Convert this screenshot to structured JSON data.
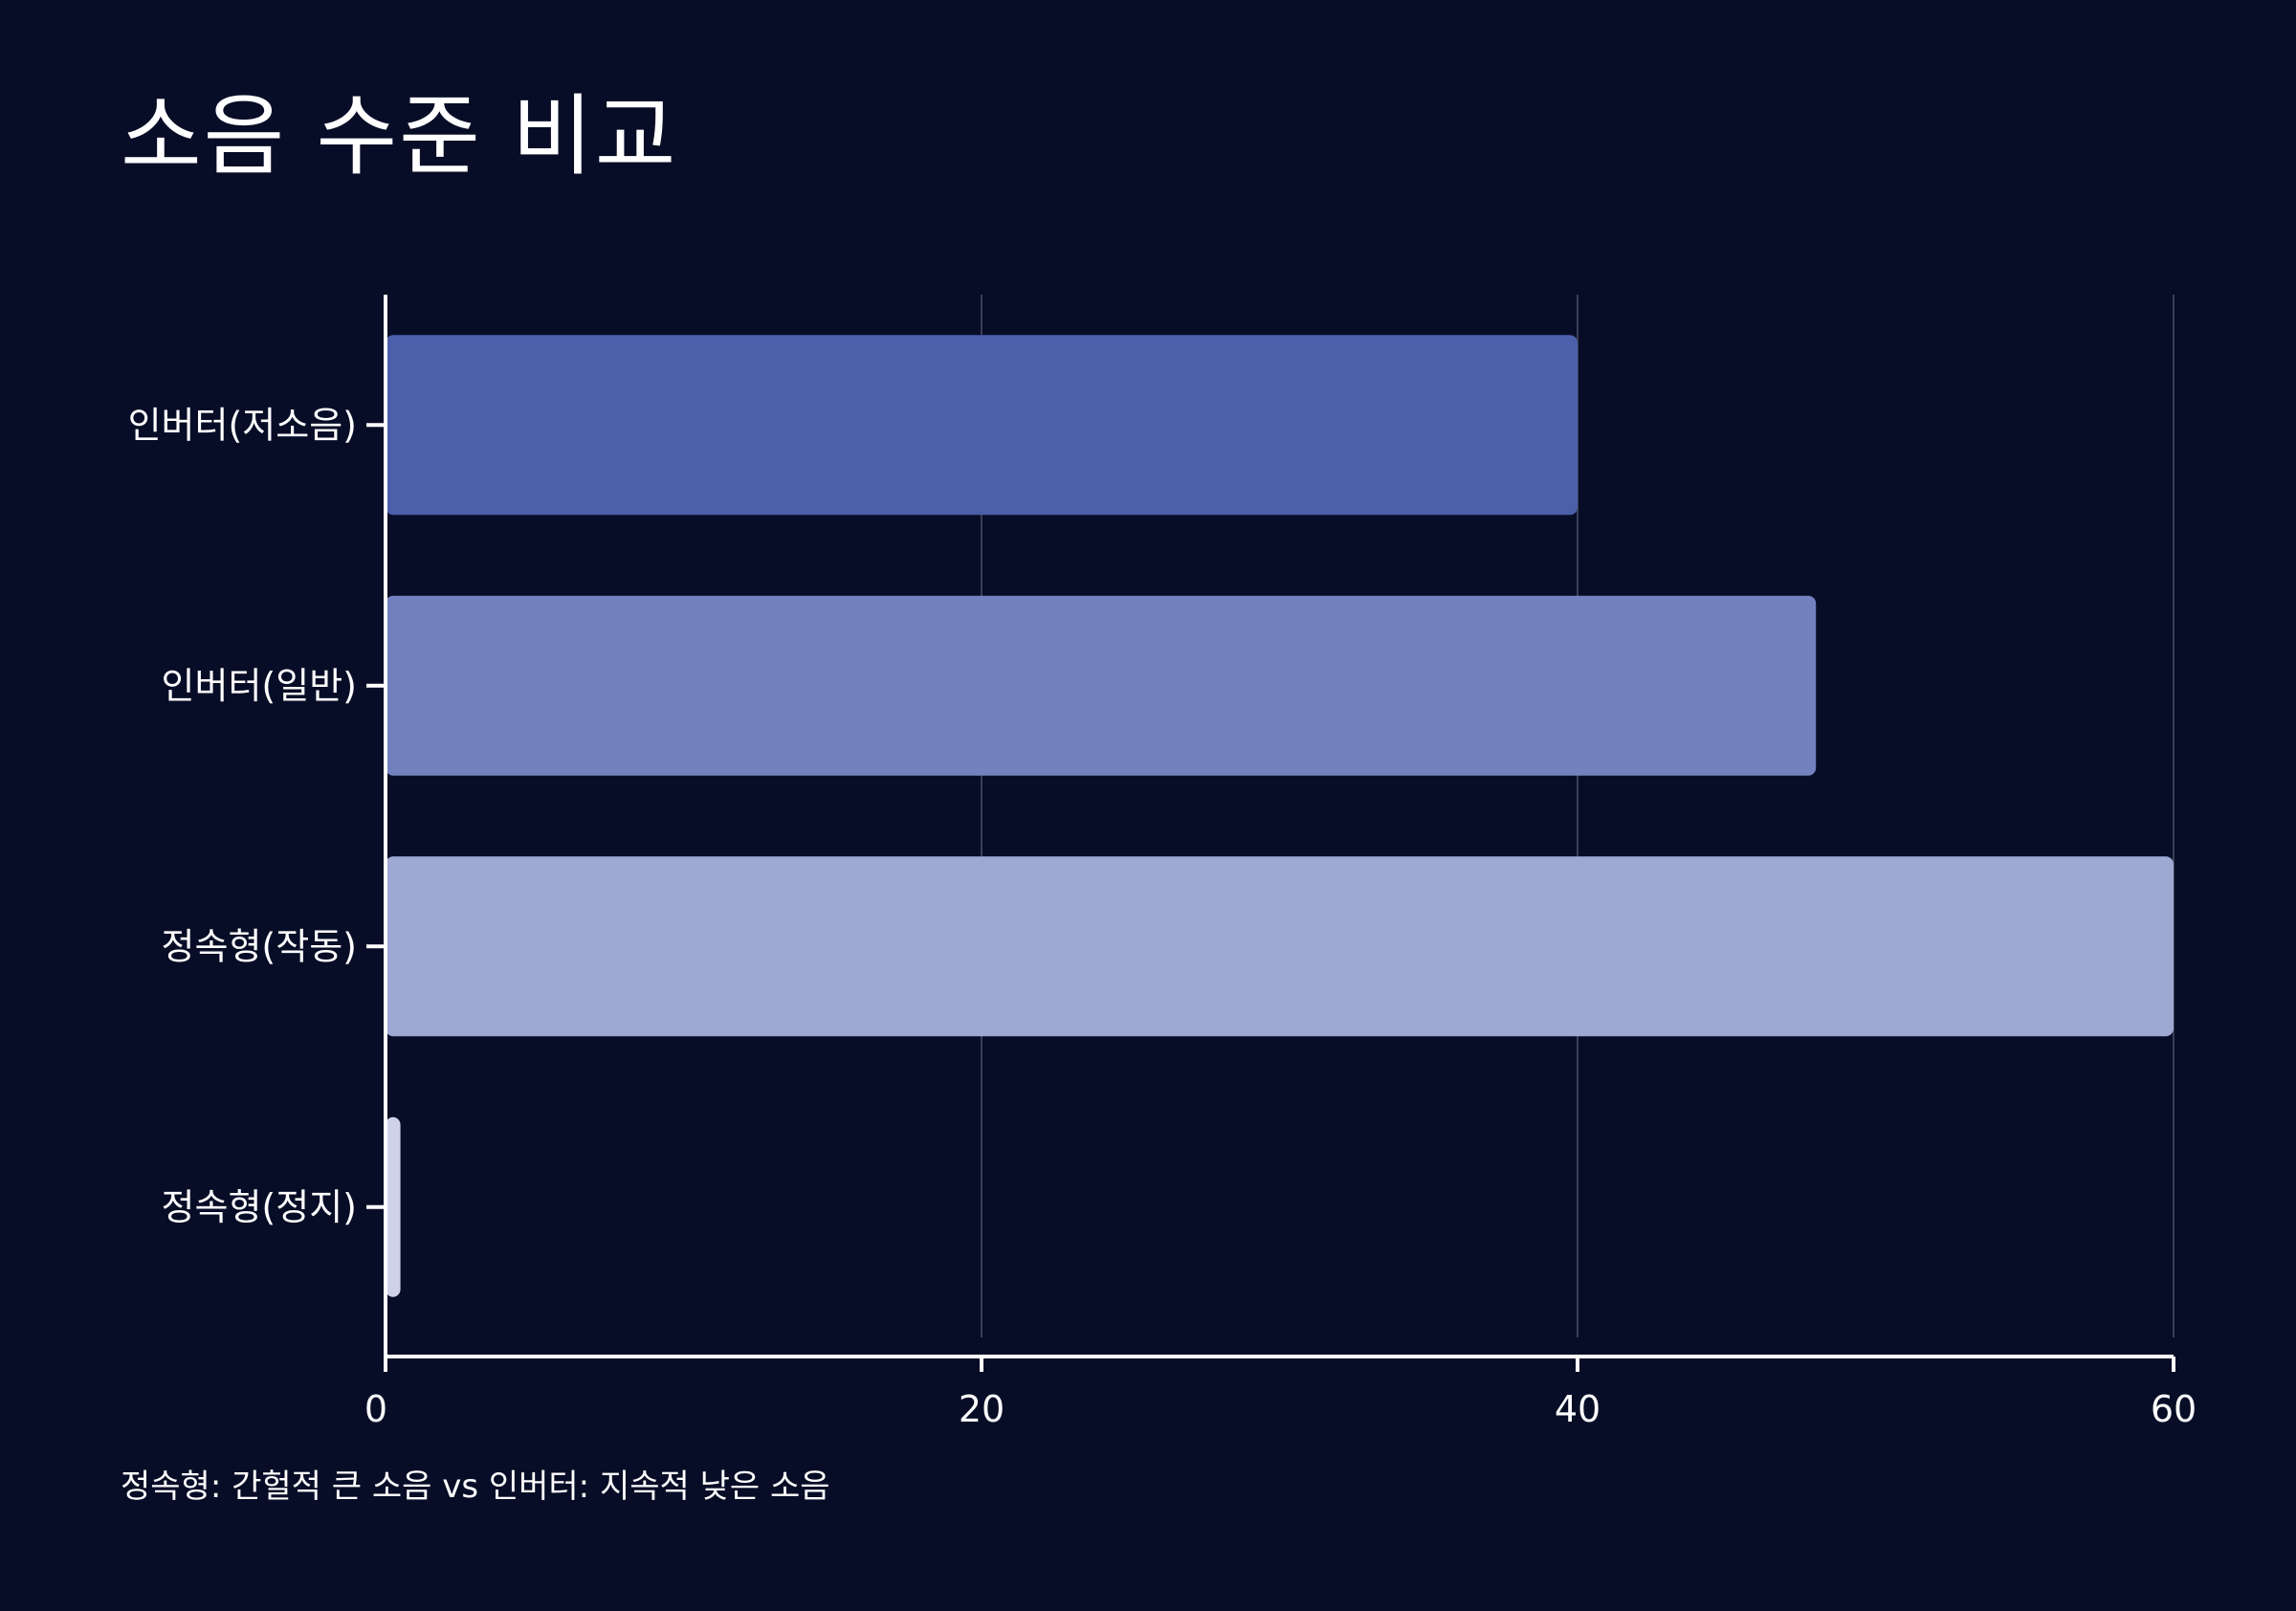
{
  "title": "소음 수준 비교",
  "footnote": "정속형: 간헐적 큰 소음 vs 인버터: 지속적 낮은 소음",
  "chart_data": {
    "type": "bar",
    "orientation": "horizontal",
    "categories": [
      "인버터(저소음)",
      "인버터(일반)",
      "정속형(작동)",
      "정속형(정지)"
    ],
    "values": [
      40,
      48,
      60,
      0.5
    ],
    "colors": [
      "#4c5fab",
      "#7382be",
      "#9ea8d3",
      "#cdd2ea"
    ],
    "xlim": [
      0,
      60
    ],
    "xticks": [
      0,
      20,
      40,
      60
    ],
    "grid": true,
    "title": "소음 수준 비교",
    "xlabel": "",
    "ylabel": ""
  },
  "colors": {
    "background": "#080d27",
    "axis": "#ffffff",
    "grid": "#3a3f55"
  }
}
